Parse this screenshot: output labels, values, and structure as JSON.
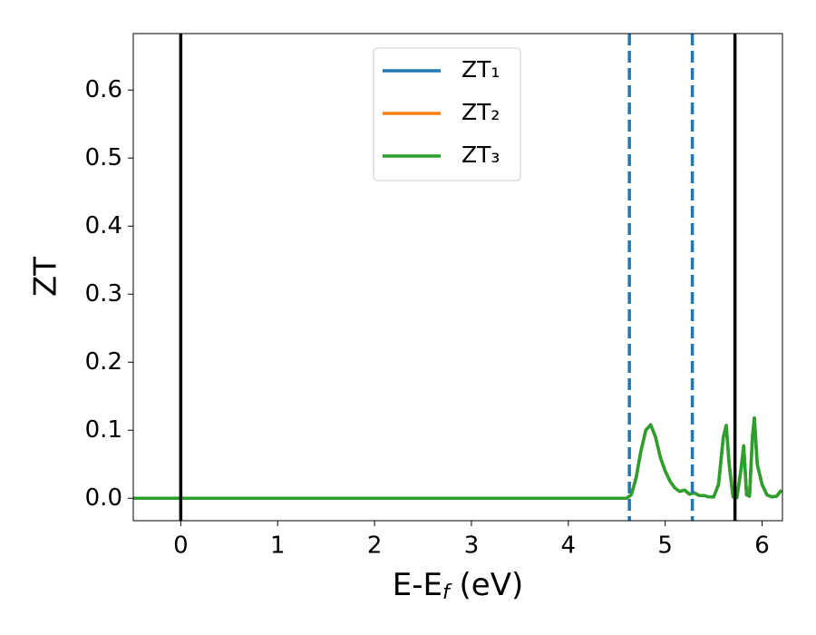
{
  "chart_data": {
    "type": "line",
    "xlabel": [
      "E-E",
      "f",
      " (eV)"
    ],
    "ylabel": "ZT",
    "x": [
      -0.49,
      4.6,
      4.65,
      4.7,
      4.75,
      4.8,
      4.85,
      4.9,
      4.95,
      5.0,
      5.05,
      5.1,
      5.15,
      5.2,
      5.25,
      5.3,
      5.35,
      5.4,
      5.45,
      5.5,
      5.55,
      5.6,
      5.63,
      5.66,
      5.7,
      5.74,
      5.78,
      5.81,
      5.84,
      5.87,
      5.9,
      5.92,
      5.95,
      6.0,
      6.05,
      6.1,
      6.15,
      6.2
    ],
    "series": [
      {
        "name": "ZT₁",
        "color": "#1f77b4",
        "values": [
          0,
          0,
          0.005,
          0.03,
          0.07,
          0.1,
          0.108,
          0.09,
          0.06,
          0.04,
          0.025,
          0.015,
          0.01,
          0.012,
          0.006,
          0.008,
          0.004,
          0.004,
          0.002,
          0.002,
          0.02,
          0.09,
          0.107,
          0.05,
          0.002,
          0.001,
          0.04,
          0.077,
          0.005,
          0.003,
          0.09,
          0.118,
          0.05,
          0.02,
          0.005,
          0.002,
          0.003,
          0.012
        ]
      },
      {
        "name": "ZT₂",
        "color": "#ff7f0e",
        "values": [
          0,
          0,
          0.005,
          0.03,
          0.07,
          0.1,
          0.108,
          0.09,
          0.06,
          0.04,
          0.025,
          0.015,
          0.01,
          0.012,
          0.006,
          0.008,
          0.004,
          0.004,
          0.002,
          0.002,
          0.02,
          0.09,
          0.107,
          0.05,
          0.002,
          0.001,
          0.04,
          0.077,
          0.005,
          0.003,
          0.09,
          0.118,
          0.05,
          0.02,
          0.005,
          0.002,
          0.003,
          0.012
        ]
      },
      {
        "name": "ZT₃",
        "color": "#2ca02c",
        "values": [
          0,
          0,
          0.005,
          0.03,
          0.07,
          0.1,
          0.108,
          0.09,
          0.06,
          0.04,
          0.025,
          0.015,
          0.01,
          0.012,
          0.006,
          0.008,
          0.004,
          0.004,
          0.002,
          0.002,
          0.02,
          0.09,
          0.107,
          0.05,
          0.002,
          0.001,
          0.04,
          0.077,
          0.005,
          0.003,
          0.09,
          0.118,
          0.05,
          0.02,
          0.005,
          0.002,
          0.003,
          0.012
        ]
      }
    ],
    "vlines": [
      {
        "x": 0,
        "color": "#000000",
        "style": "solid"
      },
      {
        "x": 4.63,
        "color": "#1f77b4",
        "style": "dashed"
      },
      {
        "x": 5.28,
        "color": "#1f77b4",
        "style": "dashed"
      },
      {
        "x": 5.72,
        "color": "#000000",
        "style": "solid"
      }
    ],
    "xlim": [
      -0.49,
      6.21
    ],
    "ylim": [
      -0.033,
      0.683
    ],
    "xticks": [
      0,
      1,
      2,
      3,
      4,
      5,
      6
    ],
    "yticks": [
      {
        "value": 0,
        "label": "0.0"
      },
      0.1,
      0.2,
      0.3,
      0.4,
      0.5,
      0.6
    ],
    "grid": false,
    "legend": "upper center"
  }
}
